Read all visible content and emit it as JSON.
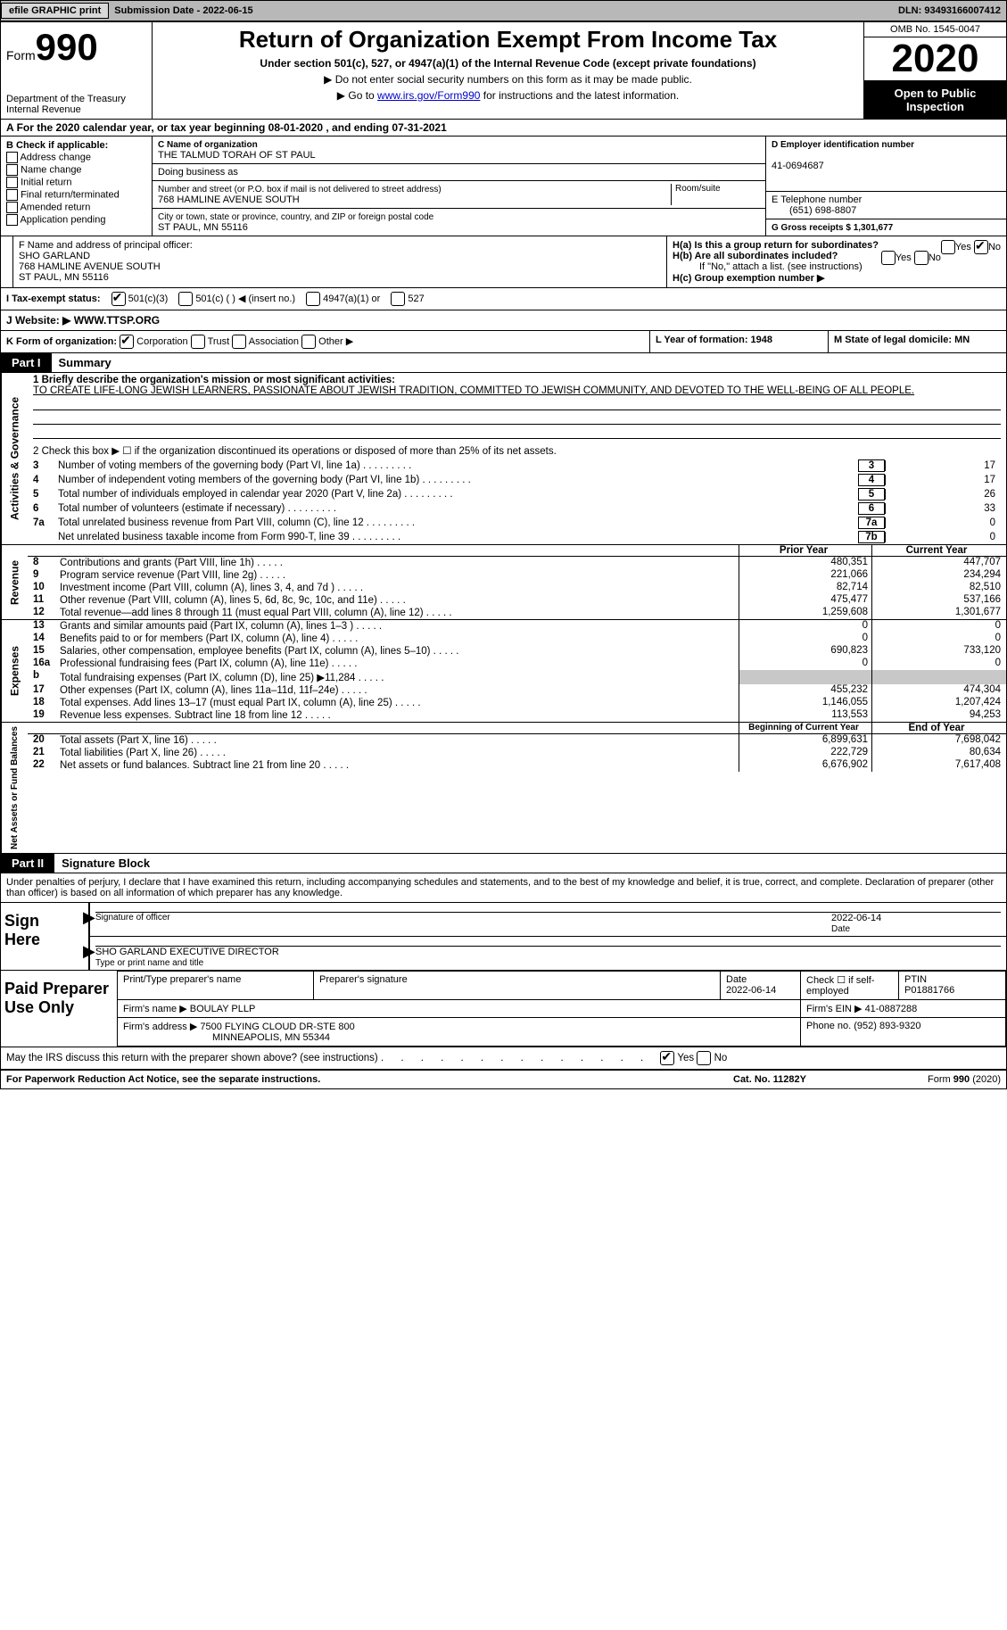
{
  "colors": {
    "bg": "#ffffff",
    "text": "#000000",
    "topbar_bg": "#b8b8b8",
    "button_bg": "#d8d8d8",
    "black_header_bg": "#000000",
    "black_header_text": "#ffffff",
    "link": "#0000cc",
    "gray_cell": "#c8c8c8"
  },
  "topbar": {
    "efile_btn": "efile GRAPHIC print",
    "submission_label": "Submission Date - 2022-06-15",
    "dln_label": "DLN: 93493166007412"
  },
  "header": {
    "form_word": "Form",
    "form_number": "990",
    "dept": "Department of the Treasury",
    "irs": "Internal Revenue",
    "title": "Return of Organization Exempt From Income Tax",
    "subtitle": "Under section 501(c), 527, or 4947(a)(1) of the Internal Revenue Code (except private foundations)",
    "note1": "▶ Do not enter social security numbers on this form as it may be made public.",
    "note2_pre": "▶ Go to ",
    "note2_link": "www.irs.gov/Form990",
    "note2_post": " for instructions and the latest information.",
    "omb": "OMB No. 1545-0047",
    "year": "2020",
    "open_pub": "Open to Public Inspection"
  },
  "section_a": {
    "period": "For the 2020 calendar year, or tax year beginning 08-01-2020    , and ending 07-31-2021",
    "b_label": "B Check if applicable:",
    "b_opts": [
      "Address change",
      "Name change",
      "Initial return",
      "Final return/terminated",
      "Amended return",
      "Application pending"
    ],
    "c_label": "C Name of organization",
    "org_name": "THE TALMUD TORAH OF ST PAUL",
    "dba_label": "Doing business as",
    "addr_label": "Number and street (or P.O. box if mail is not delivered to street address)",
    "room_label": "Room/suite",
    "addr": "768 HAMLINE AVENUE SOUTH",
    "city_label": "City or town, state or province, country, and ZIP or foreign postal code",
    "city": "ST PAUL, MN  55116",
    "d_label": "D Employer identification number",
    "ein": "41-0694687",
    "e_label": "E Telephone number",
    "phone": "(651) 698-8807",
    "g_label": "G Gross receipts $ 1,301,677",
    "f_label": "F  Name and address of principal officer:",
    "officer_name": "SHO GARLAND",
    "officer_addr1": "768 HAMLINE AVENUE SOUTH",
    "officer_addr2": "ST PAUL, MN  55116",
    "ha_label": "H(a)  Is this a group return for subordinates?",
    "hb_label": "H(b)  Are all subordinates included?",
    "hb_note": "If \"No,\" attach a list. (see instructions)",
    "hc_label": "H(c)  Group exemption number ▶",
    "yes": "Yes",
    "no": "No",
    "i_label": "I    Tax-exempt status:",
    "i_501c3": "501(c)(3)",
    "i_501c": "501(c) (  ) ◀ (insert no.)",
    "i_4947": "4947(a)(1) or",
    "i_527": "527",
    "j_label": "J    Website: ▶",
    "website": "WWW.TTSP.ORG",
    "k_label": "K Form of organization:",
    "k_opts": [
      "Corporation",
      "Trust",
      "Association",
      "Other ▶"
    ],
    "l_label": "L Year of formation: 1948",
    "m_label": "M State of legal domicile: MN"
  },
  "part1": {
    "part_label": "Part I",
    "title": "Summary",
    "vert_labels": [
      "Activities & Governance",
      "Revenue",
      "Expenses",
      "Net Assets or Fund Balances"
    ],
    "line1_label": "1   Briefly describe the organization's mission or most significant activities:",
    "mission": "TO CREATE LIFE-LONG JEWISH LEARNERS, PASSIONATE ABOUT JEWISH TRADITION, COMMITTED TO JEWISH COMMUNITY, AND DEVOTED TO THE WELL-BEING OF ALL PEOPLE.",
    "line2": "2    Check this box ▶ ☐  if the organization discontinued its operations or disposed of more than 25% of its net assets.",
    "gov_lines": [
      {
        "n": "3",
        "d": "Number of voting members of the governing body (Part VI, line 1a)",
        "box": "3",
        "v": "17"
      },
      {
        "n": "4",
        "d": "Number of independent voting members of the governing body (Part VI, line 1b)",
        "box": "4",
        "v": "17"
      },
      {
        "n": "5",
        "d": "Total number of individuals employed in calendar year 2020 (Part V, line 2a)",
        "box": "5",
        "v": "26"
      },
      {
        "n": "6",
        "d": "Total number of volunteers (estimate if necessary)",
        "box": "6",
        "v": "33"
      },
      {
        "n": "7a",
        "d": "Total unrelated business revenue from Part VIII, column (C), line 12",
        "box": "7a",
        "v": "0"
      },
      {
        "n": "",
        "d": "Net unrelated business taxable income from Form 990-T, line 39",
        "box": "7b",
        "v": "0"
      }
    ],
    "col_headers": {
      "prior": "Prior Year",
      "current": "Current Year",
      "begin": "Beginning of Current Year",
      "end": "End of Year"
    },
    "rev_lines": [
      {
        "n": "8",
        "d": "Contributions and grants (Part VIII, line 1h)",
        "pv": "480,351",
        "cv": "447,707"
      },
      {
        "n": "9",
        "d": "Program service revenue (Part VIII, line 2g)",
        "pv": "221,066",
        "cv": "234,294"
      },
      {
        "n": "10",
        "d": "Investment income (Part VIII, column (A), lines 3, 4, and 7d )",
        "pv": "82,714",
        "cv": "82,510"
      },
      {
        "n": "11",
        "d": "Other revenue (Part VIII, column (A), lines 5, 6d, 8c, 9c, 10c, and 11e)",
        "pv": "475,477",
        "cv": "537,166"
      },
      {
        "n": "12",
        "d": "Total revenue—add lines 8 through 11 (must equal Part VIII, column (A), line 12)",
        "pv": "1,259,608",
        "cv": "1,301,677"
      }
    ],
    "exp_lines": [
      {
        "n": "13",
        "d": "Grants and similar amounts paid (Part IX, column (A), lines 1–3 )",
        "pv": "0",
        "cv": "0"
      },
      {
        "n": "14",
        "d": "Benefits paid to or for members (Part IX, column (A), line 4)",
        "pv": "0",
        "cv": "0"
      },
      {
        "n": "15",
        "d": "Salaries, other compensation, employee benefits (Part IX, column (A), lines 5–10)",
        "pv": "690,823",
        "cv": "733,120"
      },
      {
        "n": "16a",
        "d": "Professional fundraising fees (Part IX, column (A), line 11e)",
        "pv": "0",
        "cv": "0"
      },
      {
        "n": "b",
        "d": "Total fundraising expenses (Part IX, column (D), line 25) ▶11,284",
        "pv": "",
        "cv": "",
        "gray": true
      },
      {
        "n": "17",
        "d": "Other expenses (Part IX, column (A), lines 11a–11d, 11f–24e)",
        "pv": "455,232",
        "cv": "474,304"
      },
      {
        "n": "18",
        "d": "Total expenses. Add lines 13–17 (must equal Part IX, column (A), line 25)",
        "pv": "1,146,055",
        "cv": "1,207,424"
      },
      {
        "n": "19",
        "d": "Revenue less expenses. Subtract line 18 from line 12",
        "pv": "113,553",
        "cv": "94,253"
      }
    ],
    "net_lines": [
      {
        "n": "20",
        "d": "Total assets (Part X, line 16)",
        "pv": "6,899,631",
        "cv": "7,698,042"
      },
      {
        "n": "21",
        "d": "Total liabilities (Part X, line 26)",
        "pv": "222,729",
        "cv": "80,634"
      },
      {
        "n": "22",
        "d": "Net assets or fund balances. Subtract line 21 from line 20",
        "pv": "6,676,902",
        "cv": "7,617,408"
      }
    ]
  },
  "part2": {
    "part_label": "Part II",
    "title": "Signature Block",
    "declaration": "Under penalties of perjury, I declare that I have examined this return, including accompanying schedules and statements, and to the best of my knowledge and belief, it is true, correct, and complete. Declaration of preparer (other than officer) is based on all information of which preparer has any knowledge.",
    "sign_here": "Sign Here",
    "sig_officer": "Signature of officer",
    "sig_date": "2022-06-14",
    "date_label": "Date",
    "officer_name_title": "SHO GARLAND  EXECUTIVE DIRECTOR",
    "type_name": "Type or print name and title",
    "paid_prep": "Paid Preparer Use Only",
    "prep_headers": {
      "name": "Print/Type preparer's name",
      "sig": "Preparer's signature",
      "date": "Date",
      "check": "Check ☐ if self-employed",
      "ptin": "PTIN"
    },
    "prep_date": "2022-06-14",
    "ptin": "P01881766",
    "firm_name_label": "Firm's name    ▶",
    "firm_name": "BOULAY PLLP",
    "firm_ein_label": "Firm's EIN ▶",
    "firm_ein": "41-0887288",
    "firm_addr_label": "Firm's address ▶",
    "firm_addr1": "7500 FLYING CLOUD DR-STE 800",
    "firm_addr2": "MINNEAPOLIS, MN  55344",
    "phone_label": "Phone no.",
    "phone": "(952) 893-9320",
    "discuss": "May the IRS discuss this return with the preparer shown above? (see instructions)",
    "footer_left": "For Paperwork Reduction Act Notice, see the separate instructions.",
    "footer_cat": "Cat. No. 11282Y",
    "footer_right": "Form 990 (2020)"
  }
}
